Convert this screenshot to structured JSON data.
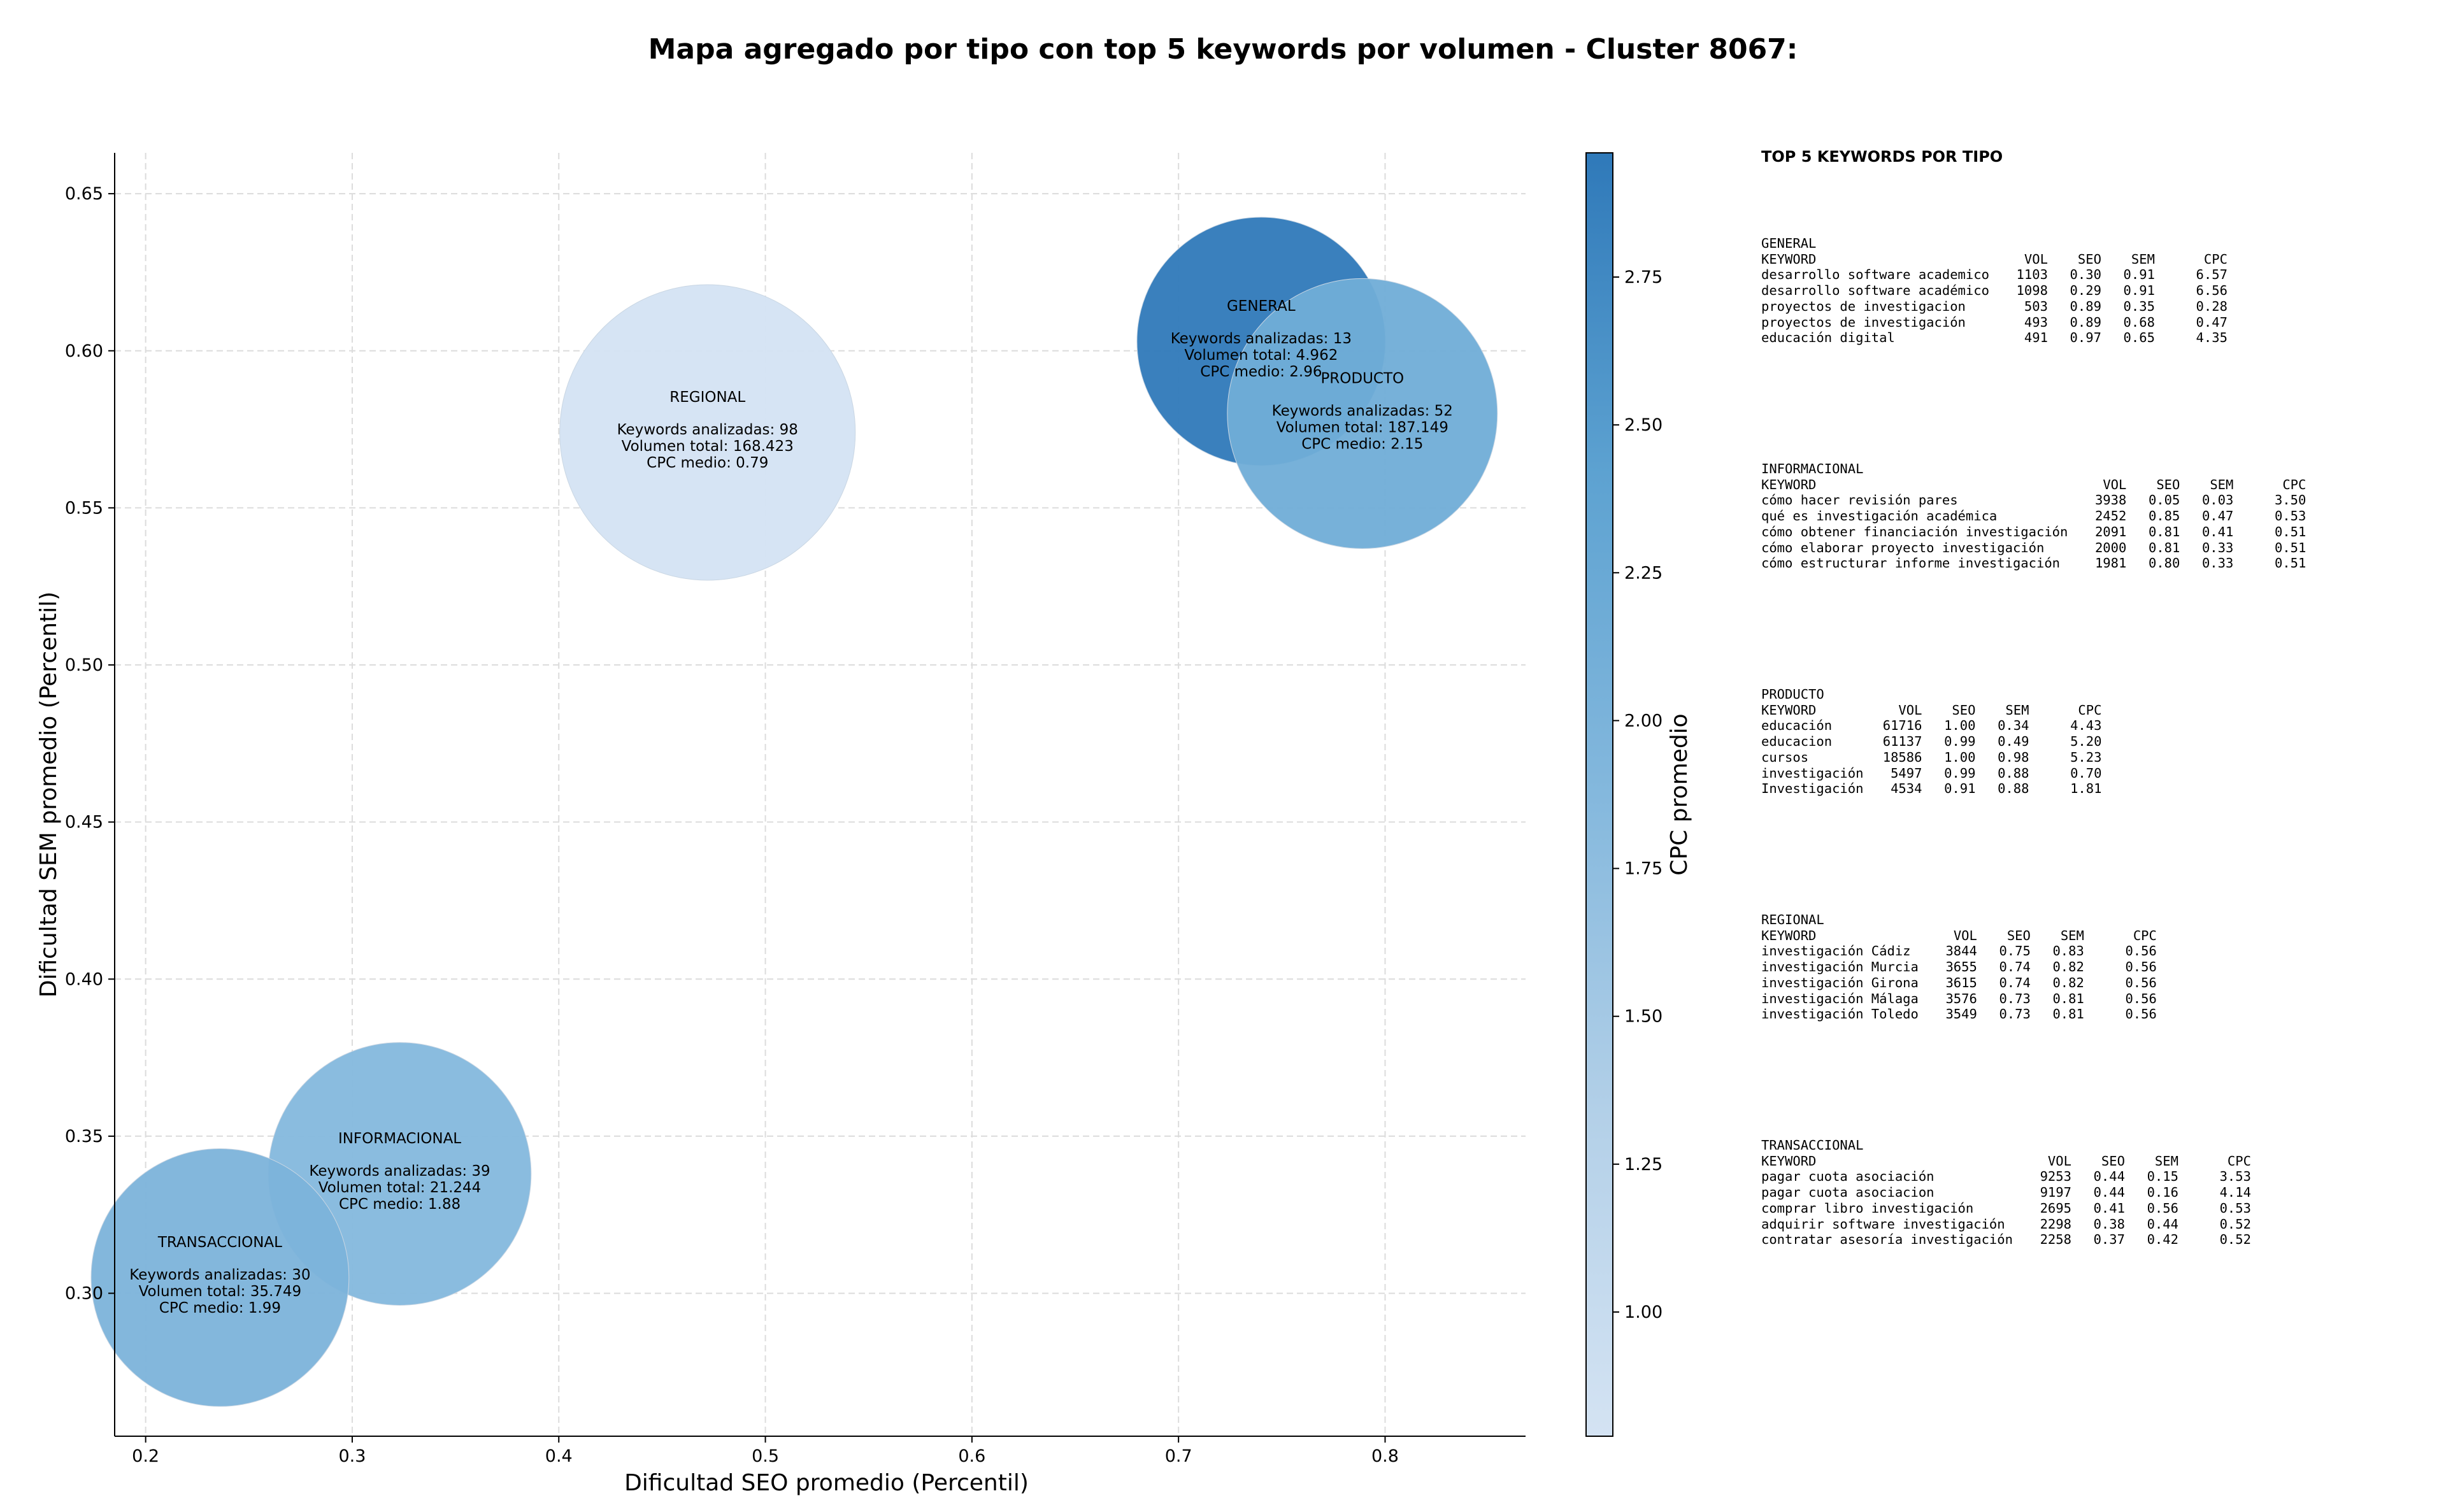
{
  "title": "Mapa agregado por tipo con top 5 keywords por volumen - Cluster 8067:",
  "chart_data": {
    "type": "scatter",
    "xlabel": "Dificultad SEO promedio (Percentil)",
    "ylabel": "Dificultad SEM promedio (Percentil)",
    "xlim": [
      0.185,
      0.868
    ],
    "ylim": [
      0.2545,
      0.663
    ],
    "xticks": [
      0.2,
      0.3,
      0.4,
      0.5,
      0.6,
      0.7,
      0.8
    ],
    "yticks": [
      0.3,
      0.35,
      0.4,
      0.45,
      0.5,
      0.55,
      0.6,
      0.65
    ],
    "xtick_labels": [
      "0.2",
      "0.3",
      "0.4",
      "0.5",
      "0.6",
      "0.7",
      "0.8"
    ],
    "ytick_labels": [
      "0.30",
      "0.35",
      "0.40",
      "0.45",
      "0.50",
      "0.55",
      "0.60",
      "0.65"
    ],
    "grid": true,
    "colorbar": {
      "label": "CPC promedio",
      "range": [
        0.79,
        2.96
      ],
      "ticks": [
        1.0,
        1.25,
        1.5,
        1.75,
        2.0,
        2.25,
        2.5,
        2.75
      ],
      "tick_labels": [
        "1.00",
        "1.25",
        "1.50",
        "1.75",
        "2.00",
        "2.25",
        "2.50",
        "2.75"
      ],
      "colors": [
        "#d4e3f3",
        "#2f79b9"
      ]
    },
    "points": [
      {
        "name": "REGIONAL",
        "x": 0.472,
        "y": 0.574,
        "keywords": 98,
        "volume": 168423,
        "cpc": 0.79,
        "lines": [
          "Keywords analizadas: 98",
          "Volumen total: 168.423",
          "CPC medio: 0.79"
        ]
      },
      {
        "name": "GENERAL",
        "x": 0.74,
        "y": 0.603,
        "keywords": 13,
        "volume": 4962,
        "cpc": 2.96,
        "lines": [
          "Keywords analizadas: 13",
          "Volumen total: 4.962",
          "CPC medio: 2.96"
        ]
      },
      {
        "name": "PRODUCTO",
        "x": 0.789,
        "y": 0.58,
        "keywords": 52,
        "volume": 187149,
        "cpc": 2.15,
        "lines": [
          "Keywords analizadas: 52",
          "Volumen total: 187.149",
          "CPC medio: 2.15"
        ]
      },
      {
        "name": "INFORMACIONAL",
        "x": 0.323,
        "y": 0.338,
        "keywords": 39,
        "volume": 21244,
        "cpc": 1.88,
        "lines": [
          "Keywords analizadas: 39",
          "Volumen total: 21.244",
          "CPC medio: 1.88"
        ]
      },
      {
        "name": "TRANSACCIONAL",
        "x": 0.236,
        "y": 0.305,
        "keywords": 30,
        "volume": 35749,
        "cpc": 1.99,
        "lines": [
          "Keywords analizadas: 30",
          "Volumen total: 35.749",
          "CPC medio: 1.99"
        ]
      }
    ]
  },
  "side_panel": {
    "heading": "TOP 5 KEYWORDS POR TIPO",
    "columns": {
      "keyword": "KEYWORD",
      "vol": "VOL",
      "seo": "SEO",
      "sem": "SEM",
      "cpc": "CPC"
    },
    "groups": [
      {
        "name": "GENERAL",
        "rows": [
          [
            "desarrollo software academico",
            "1103",
            "0.30",
            "0.91",
            "6.57"
          ],
          [
            "desarrollo software académico",
            "1098",
            "0.29",
            "0.91",
            "6.56"
          ],
          [
            "proyectos de investigacion",
            "503",
            "0.89",
            "0.35",
            "0.28"
          ],
          [
            "proyectos de investigación",
            "493",
            "0.89",
            "0.68",
            "0.47"
          ],
          [
            "educación digital",
            "491",
            "0.97",
            "0.65",
            "4.35"
          ]
        ]
      },
      {
        "name": "INFORMACIONAL",
        "rows": [
          [
            "cómo hacer revisión pares",
            "3938",
            "0.05",
            "0.03",
            "3.50"
          ],
          [
            "qué es investigación académica",
            "2452",
            "0.85",
            "0.47",
            "0.53"
          ],
          [
            "cómo obtener financiación investigación",
            "2091",
            "0.81",
            "0.41",
            "0.51"
          ],
          [
            "cómo elaborar proyecto investigación",
            "2000",
            "0.81",
            "0.33",
            "0.51"
          ],
          [
            "cómo estructurar informe investigación",
            "1981",
            "0.80",
            "0.33",
            "0.51"
          ]
        ]
      },
      {
        "name": "PRODUCTO",
        "rows": [
          [
            "educación",
            "61716",
            "1.00",
            "0.34",
            "4.43"
          ],
          [
            "educacion",
            "61137",
            "0.99",
            "0.49",
            "5.20"
          ],
          [
            "cursos",
            "18586",
            "1.00",
            "0.98",
            "5.23"
          ],
          [
            "investigación",
            "5497",
            "0.99",
            "0.88",
            "0.70"
          ],
          [
            "Investigación",
            "4534",
            "0.91",
            "0.88",
            "1.81"
          ]
        ]
      },
      {
        "name": "REGIONAL",
        "rows": [
          [
            "investigación Cádiz",
            "3844",
            "0.75",
            "0.83",
            "0.56"
          ],
          [
            "investigación Murcia",
            "3655",
            "0.74",
            "0.82",
            "0.56"
          ],
          [
            "investigación Girona",
            "3615",
            "0.74",
            "0.82",
            "0.56"
          ],
          [
            "investigación Málaga",
            "3576",
            "0.73",
            "0.81",
            "0.56"
          ],
          [
            "investigación Toledo",
            "3549",
            "0.73",
            "0.81",
            "0.56"
          ]
        ]
      },
      {
        "name": "TRANSACCIONAL",
        "rows": [
          [
            "pagar cuota asociación",
            "9253",
            "0.44",
            "0.15",
            "3.53"
          ],
          [
            "pagar cuota asociacion",
            "9197",
            "0.44",
            "0.16",
            "4.14"
          ],
          [
            "comprar libro investigación",
            "2695",
            "0.41",
            "0.56",
            "0.53"
          ],
          [
            "adquirir software investigación",
            "2298",
            "0.38",
            "0.44",
            "0.52"
          ],
          [
            "contratar asesoría investigación",
            "2258",
            "0.37",
            "0.42",
            "0.52"
          ]
        ]
      }
    ]
  }
}
